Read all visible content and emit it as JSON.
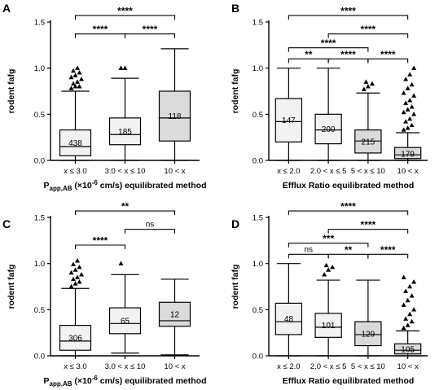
{
  "chart_data": [
    {
      "type": "box",
      "panel": "A",
      "ylabel": "rodent fafg",
      "xlabel": "P_app,AB (×10⁻⁶ cm/s) equilibrated method",
      "xlabel_parts": {
        "main": "P",
        "sub": "app,AB",
        "rest": " (×10",
        "sup": "-6",
        "tail": " cm/s) equilibrated method"
      },
      "ylim": [
        0,
        1.5
      ],
      "yticks": [
        "0.0",
        "0.5",
        "1.0",
        "1.5"
      ],
      "categories": [
        "x ≤ 3.0",
        "3.0 < x ≤ 10",
        "10 < x"
      ],
      "boxes": [
        {
          "whisker_low": 0.0,
          "q1": 0.05,
          "median": 0.15,
          "q3": 0.33,
          "whisker_high": 0.75,
          "n": "438",
          "shade": "#f2f2f2",
          "outliers": [
            0.78,
            0.8,
            0.8,
            0.83,
            0.85,
            0.88,
            0.9,
            0.92,
            0.95,
            0.97,
            1.0
          ]
        },
        {
          "whisker_low": 0.0,
          "q1": 0.17,
          "median": 0.28,
          "q3": 0.46,
          "whisker_high": 0.89,
          "n": "185",
          "shade": "#f2f2f2",
          "outliers": [
            1.0,
            1.0
          ]
        },
        {
          "whisker_low": 0.0,
          "q1": 0.21,
          "median": 0.46,
          "q3": 0.75,
          "whisker_high": 1.21,
          "n": "118",
          "shade": "#dadada",
          "outliers": []
        }
      ],
      "comparisons": [
        {
          "from": 0,
          "to": 1,
          "label": "****",
          "y": 1.37
        },
        {
          "from": 1,
          "to": 2,
          "label": "****",
          "y": 1.37
        },
        {
          "from": 0,
          "to": 2,
          "label": "****",
          "y": 1.57
        }
      ]
    },
    {
      "type": "box",
      "panel": "B",
      "ylabel": "rodent fafg",
      "xlabel": "Efflux Ratio equilibrated method",
      "ylim": [
        0,
        1.5
      ],
      "yticks": [
        "0.0",
        "0.5",
        "1.0",
        "1.5"
      ],
      "categories": [
        "x ≤ 2.0",
        "2.0 < x ≤ 5",
        "5 < x ≤ 10",
        "10 < x"
      ],
      "boxes": [
        {
          "whisker_low": 0.0,
          "q1": 0.2,
          "median": 0.42,
          "q3": 0.67,
          "whisker_high": 1.0,
          "n": "147",
          "shade": "#f2f2f2",
          "outliers": []
        },
        {
          "whisker_low": 0.0,
          "q1": 0.18,
          "median": 0.33,
          "q3": 0.5,
          "whisker_high": 1.0,
          "n": "200",
          "shade": "#f2f2f2",
          "outliers": []
        },
        {
          "whisker_low": 0.0,
          "q1": 0.08,
          "median": 0.21,
          "q3": 0.33,
          "whisker_high": 0.73,
          "n": "215",
          "shade": "#dadada",
          "outliers": [
            0.77,
            0.8,
            0.83,
            0.85
          ]
        },
        {
          "whisker_low": 0.0,
          "q1": 0.02,
          "median": 0.06,
          "q3": 0.14,
          "whisker_high": 0.3,
          "n": "179",
          "shade": "#dadada",
          "outliers": [
            0.33,
            0.35,
            0.38,
            0.42,
            0.45,
            0.5,
            0.52,
            0.55,
            0.58,
            0.62,
            0.65,
            0.7,
            0.73,
            0.78,
            0.82,
            0.88,
            0.93,
            1.0
          ]
        }
      ],
      "comparisons": [
        {
          "from": 0,
          "to": 1,
          "label": "**",
          "y": 1.1
        },
        {
          "from": 1,
          "to": 2,
          "label": "****",
          "y": 1.1
        },
        {
          "from": 0,
          "to": 2,
          "label": "****",
          "y": 1.22
        },
        {
          "from": 2,
          "to": 3,
          "label": "****",
          "y": 1.1
        },
        {
          "from": 1,
          "to": 3,
          "label": "****",
          "y": 1.37
        },
        {
          "from": 0,
          "to": 3,
          "label": "****",
          "y": 1.57
        }
      ]
    },
    {
      "type": "box",
      "panel": "C",
      "ylabel": "rodent fafg",
      "xlabel": "P_app,AB (×10⁻⁶ cm/s) equilibrated method",
      "xlabel_parts": {
        "main": "P",
        "sub": "app,AB",
        "rest": " (×10",
        "sup": "-6",
        "tail": " cm/s) equilibrated method"
      },
      "ylim": [
        0,
        1.5
      ],
      "yticks": [
        "0.0",
        "0.5",
        "1.0",
        "1.5"
      ],
      "categories": [
        "x ≤ 3.0",
        "3.0 < x ≤ 10",
        "10 < x"
      ],
      "boxes": [
        {
          "whisker_low": 0.0,
          "q1": 0.06,
          "median": 0.16,
          "q3": 0.33,
          "whisker_high": 0.73,
          "n": "306",
          "shade": "#f2f2f2",
          "outliers": [
            0.75,
            0.78,
            0.8,
            0.83,
            0.85,
            0.88,
            0.9,
            0.93,
            0.96,
            0.99,
            1.03
          ]
        },
        {
          "whisker_low": 0.03,
          "q1": 0.24,
          "median": 0.35,
          "q3": 0.52,
          "whisker_high": 0.88,
          "n": "65",
          "shade": "#f2f2f2",
          "outliers": [
            1.0
          ]
        },
        {
          "whisker_low": 0.01,
          "q1": 0.32,
          "median": 0.38,
          "q3": 0.58,
          "whisker_high": 0.83,
          "n": "12",
          "shade": "#dadada",
          "outliers": []
        }
      ],
      "comparisons": [
        {
          "from": 0,
          "to": 1,
          "label": "****",
          "y": 1.2
        },
        {
          "from": 1,
          "to": 2,
          "label": "ns",
          "y": 1.37
        },
        {
          "from": 0,
          "to": 2,
          "label": "**",
          "y": 1.57
        }
      ]
    },
    {
      "type": "box",
      "panel": "D",
      "ylabel": "rodent fafg",
      "xlabel": "Efflux Ratio equilibrated method",
      "ylim": [
        0,
        1.5
      ],
      "yticks": [
        "0.0",
        "0.5",
        "1.0",
        "1.5"
      ],
      "categories": [
        "x ≤ 2.0",
        "2.0 < x ≤ 5",
        "5 < x ≤ 10",
        "10 < x"
      ],
      "boxes": [
        {
          "whisker_low": 0.0,
          "q1": 0.23,
          "median": 0.37,
          "q3": 0.57,
          "whisker_high": 1.0,
          "n": "48",
          "shade": "#f2f2f2",
          "outliers": []
        },
        {
          "whisker_low": 0.0,
          "q1": 0.2,
          "median": 0.31,
          "q3": 0.46,
          "whisker_high": 0.82,
          "n": "101",
          "shade": "#f2f2f2",
          "outliers": [
            0.88,
            0.93,
            0.96,
            0.98
          ]
        },
        {
          "whisker_low": 0.0,
          "q1": 0.11,
          "median": 0.23,
          "q3": 0.37,
          "whisker_high": 0.82,
          "n": "129",
          "shade": "#dadada",
          "outliers": []
        },
        {
          "whisker_low": 0.0,
          "q1": 0.02,
          "median": 0.06,
          "q3": 0.13,
          "whisker_high": 0.27,
          "n": "105",
          "shade": "#dadada",
          "outliers": [
            0.3,
            0.33,
            0.37,
            0.4,
            0.45,
            0.5,
            0.55,
            0.6,
            0.65,
            0.7,
            0.75,
            0.8,
            0.85
          ]
        }
      ],
      "comparisons": [
        {
          "from": 0,
          "to": 1,
          "label": "ns",
          "y": 1.1
        },
        {
          "from": 1,
          "to": 2,
          "label": "**",
          "y": 1.1
        },
        {
          "from": 0,
          "to": 2,
          "label": "***",
          "y": 1.22
        },
        {
          "from": 2,
          "to": 3,
          "label": "****",
          "y": 1.1
        },
        {
          "from": 1,
          "to": 3,
          "label": "****",
          "y": 1.37
        },
        {
          "from": 0,
          "to": 3,
          "label": "****",
          "y": 1.57
        }
      ]
    }
  ]
}
